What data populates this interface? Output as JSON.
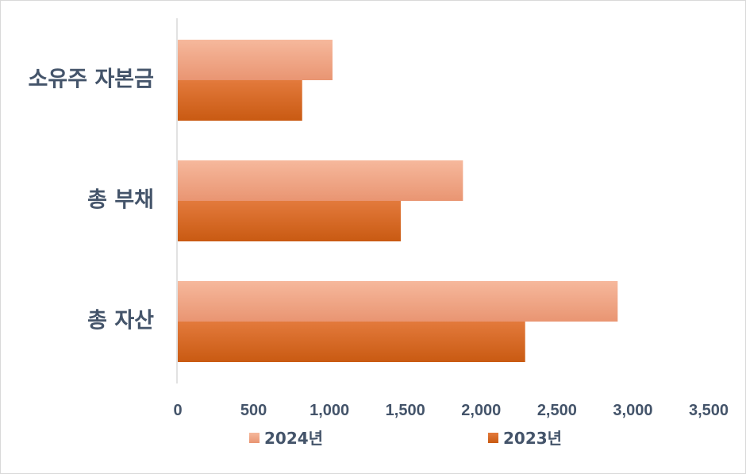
{
  "chart_data": {
    "type": "bar",
    "orientation": "horizontal",
    "categories": [
      "소유주 자본금",
      "총 부채",
      "총 자산"
    ],
    "series": [
      {
        "name": "2024년",
        "values": [
          1020,
          1880,
          2900
        ],
        "color": "#f4ae8e"
      },
      {
        "name": "2023년",
        "values": [
          820,
          1470,
          2290
        ],
        "color": "#d9681f"
      }
    ],
    "x_ticks": [
      "0",
      "500",
      "1,000",
      "1,500",
      "2,000",
      "2,500",
      "3,000",
      "3,500"
    ],
    "xlim": [
      0,
      3500
    ],
    "grid": false,
    "legend_position": "bottom",
    "title": "",
    "xlabel": "",
    "ylabel": ""
  }
}
